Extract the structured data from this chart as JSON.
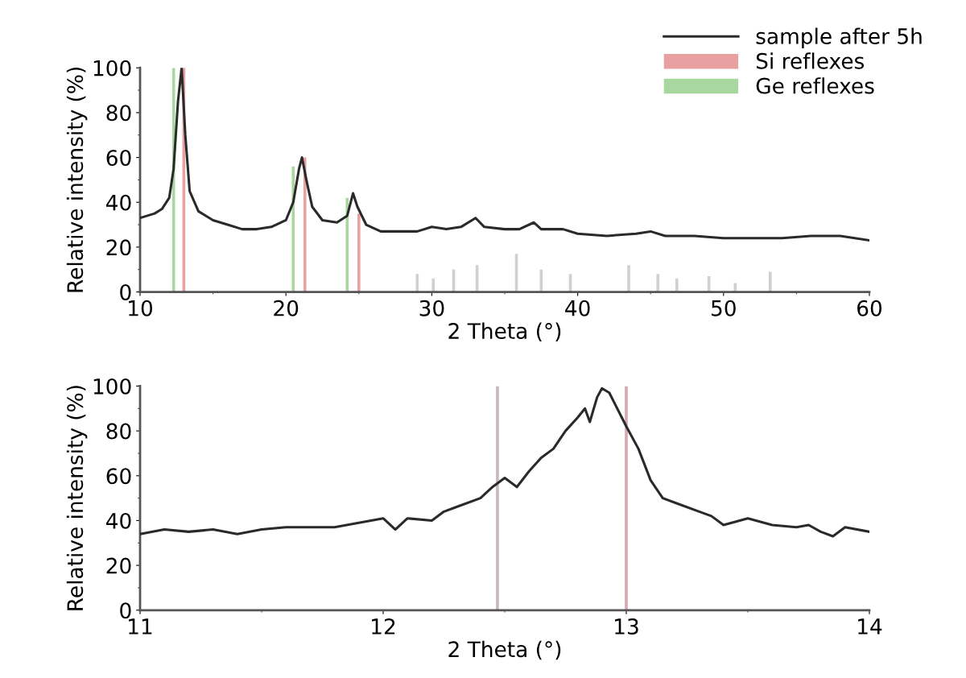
{
  "chart_data": [
    {
      "type": "line",
      "xlabel": "2 Theta (°)",
      "ylabel": "Relative intensity (%)",
      "xlim": [
        10,
        60
      ],
      "xticks": [
        10,
        20,
        30,
        40,
        50,
        60
      ],
      "ylim": [
        0,
        100
      ],
      "yticks": [
        0,
        20,
        40,
        60,
        80,
        100
      ],
      "grid": false,
      "legend": "top right",
      "series": [
        {
          "name": "sample after 5h",
          "color": "#2a2a2a",
          "x": [
            10,
            10.5,
            11,
            11.5,
            12,
            12.3,
            12.6,
            12.85,
            13.1,
            13.4,
            14,
            15,
            16,
            17,
            18,
            19,
            20,
            20.5,
            20.9,
            21.1,
            21.4,
            21.8,
            22.5,
            23.5,
            24.2,
            24.6,
            24.9,
            25.5,
            26.5,
            28,
            29,
            30,
            31,
            32,
            33,
            33.6,
            35,
            36,
            37,
            37.5,
            38,
            39,
            40,
            42,
            44,
            45,
            46,
            48,
            50,
            52,
            54,
            56,
            58,
            60
          ],
          "values": [
            33,
            34,
            35,
            37,
            42,
            55,
            85,
            100,
            70,
            45,
            36,
            32,
            30,
            28,
            28,
            29,
            32,
            40,
            55,
            60,
            50,
            38,
            32,
            31,
            34,
            44,
            38,
            30,
            27,
            27,
            27,
            29,
            28,
            29,
            33,
            29,
            28,
            28,
            31,
            28,
            28,
            28,
            26,
            25,
            26,
            27,
            25,
            25,
            24,
            24,
            24,
            25,
            25,
            23
          ]
        },
        {
          "name": "Si reflexes",
          "type": "bar",
          "color": "#e8a0a0",
          "x": [
            13.0,
            21.3,
            25.0
          ],
          "values": [
            100,
            60,
            35
          ]
        },
        {
          "name": "Ge reflexes",
          "type": "bar",
          "color": "#a8d8a0",
          "x": [
            12.3,
            20.5,
            24.2
          ],
          "values": [
            100,
            56,
            42
          ]
        },
        {
          "type": "bar",
          "color": "#d0d0d0",
          "x": [
            29,
            30.1,
            31.5,
            33.1,
            35.8,
            37.5,
            39.5,
            43.5,
            45.5,
            46.8,
            49,
            50.8,
            53.2
          ],
          "values": [
            8,
            6,
            10,
            12,
            17,
            10,
            8,
            12,
            8,
            6,
            7,
            4,
            9
          ]
        }
      ]
    },
    {
      "type": "line",
      "xlabel": "2 Theta (°)",
      "ylabel": "Relative intensity (%)",
      "xlim": [
        11,
        14
      ],
      "xticks": [
        11,
        12,
        13,
        14
      ],
      "ylim": [
        0,
        100
      ],
      "yticks": [
        0,
        20,
        40,
        60,
        80,
        100
      ],
      "grid": false,
      "series": [
        {
          "color": "#2a2a2a",
          "x": [
            11,
            11.1,
            11.2,
            11.3,
            11.4,
            11.5,
            11.6,
            11.7,
            11.8,
            11.9,
            12.0,
            12.05,
            12.1,
            12.2,
            12.25,
            12.3,
            12.4,
            12.45,
            12.5,
            12.55,
            12.6,
            12.65,
            12.7,
            12.75,
            12.8,
            12.83,
            12.85,
            12.88,
            12.9,
            12.93,
            13.0,
            13.05,
            13.1,
            13.15,
            13.2,
            13.3,
            13.35,
            13.4,
            13.5,
            13.6,
            13.7,
            13.75,
            13.8,
            13.85,
            13.9,
            14.0
          ],
          "values": [
            34,
            36,
            35,
            36,
            34,
            36,
            37,
            37,
            37,
            39,
            41,
            36,
            41,
            40,
            44,
            46,
            50,
            55,
            59,
            55,
            62,
            68,
            72,
            80,
            86,
            90,
            84,
            95,
            99,
            97,
            82,
            72,
            58,
            50,
            48,
            44,
            42,
            38,
            41,
            38,
            37,
            38,
            35,
            33,
            37,
            35
          ]
        },
        {
          "type": "bar",
          "color": "#c8b8bc",
          "x": [
            12.47
          ],
          "values": [
            100
          ]
        },
        {
          "type": "bar",
          "color": "#d8a8b0",
          "x": [
            13.0
          ],
          "values": [
            100
          ]
        }
      ]
    }
  ]
}
